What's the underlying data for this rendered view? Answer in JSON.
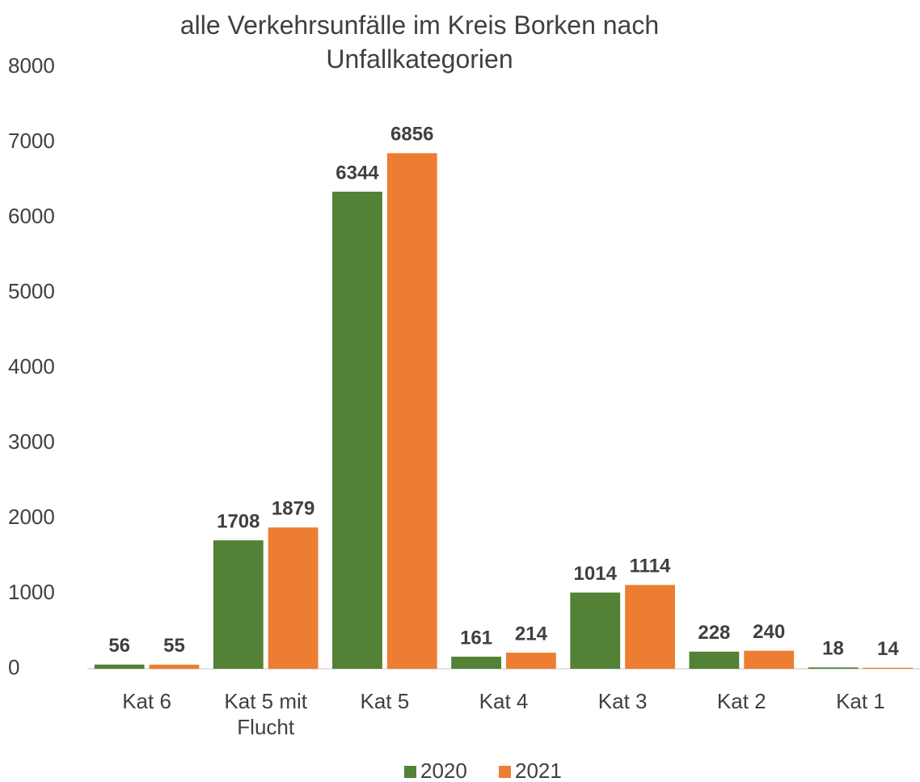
{
  "chart_data": {
    "type": "bar",
    "title": "alle Verkehrsunfälle im Kreis Borken nach Unfallkategorien",
    "categories": [
      "Kat 6",
      "Kat 5 mit Flucht",
      "Kat 5",
      "Kat 4",
      "Kat 3",
      "Kat 2",
      "Kat 1"
    ],
    "series": [
      {
        "name": "2020",
        "color": "#538135",
        "values": [
          56,
          1708,
          6344,
          161,
          1014,
          228,
          18
        ]
      },
      {
        "name": "2021",
        "color": "#ed7d31",
        "values": [
          55,
          1879,
          6856,
          214,
          1114,
          240,
          14
        ]
      }
    ],
    "ylim": [
      0,
      8000
    ],
    "yticks": [
      0,
      1000,
      2000,
      3000,
      4000,
      5000,
      6000,
      7000,
      8000
    ],
    "grid": false,
    "legend": "bottom"
  }
}
